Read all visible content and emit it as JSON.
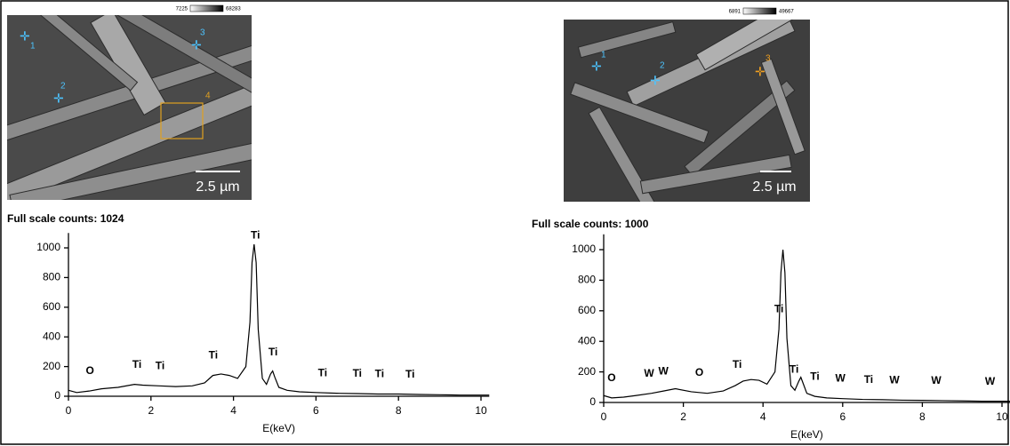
{
  "chart_data": [
    {
      "type": "line",
      "title": "Full scale counts: 1024",
      "x_label": "E(keV)",
      "color": "#000000",
      "xlim": [
        0,
        10.2
      ],
      "ylim": [
        0,
        1100
      ],
      "xticks": [
        0,
        2,
        4,
        6,
        8,
        10
      ],
      "yticks": [
        0,
        200,
        400,
        600,
        800,
        1000
      ],
      "x": [
        0,
        0.2,
        0.5,
        0.8,
        1.2,
        1.6,
        1.8,
        2.2,
        2.6,
        3.0,
        3.3,
        3.5,
        3.7,
        3.9,
        4.1,
        4.3,
        4.4,
        4.45,
        4.5,
        4.55,
        4.6,
        4.7,
        4.8,
        4.9,
        4.95,
        5.0,
        5.1,
        5.3,
        5.6,
        6,
        6.5,
        7,
        7.5,
        8,
        8.5,
        9,
        9.5,
        10,
        10.2
      ],
      "values": [
        40,
        25,
        35,
        50,
        60,
        80,
        75,
        70,
        65,
        70,
        90,
        140,
        150,
        140,
        120,
        200,
        500,
        900,
        1024,
        900,
        450,
        120,
        80,
        150,
        170,
        130,
        60,
        40,
        30,
        25,
        20,
        18,
        15,
        15,
        12,
        10,
        8,
        8,
        8
      ],
      "peak_labels": [
        {
          "label": "O",
          "x": 0.52
        },
        {
          "label": "Ti",
          "x": 1.66
        },
        {
          "label": "Ti",
          "x": 2.22
        },
        {
          "label": "Ti",
          "x": 3.51
        },
        {
          "label": "Ti",
          "x": 4.53
        },
        {
          "label": "Ti",
          "x": 4.96
        },
        {
          "label": "Ti",
          "x": 6.16
        },
        {
          "label": "Ti",
          "x": 7.0
        },
        {
          "label": "Ti",
          "x": 7.54
        },
        {
          "label": "Ti",
          "x": 8.28
        }
      ]
    },
    {
      "type": "line",
      "title": "Full scale counts: 1000",
      "x_label": "E(keV)",
      "color": "#000000",
      "xlim": [
        0,
        10.2
      ],
      "ylim": [
        0,
        1100
      ],
      "xticks": [
        0,
        2,
        4,
        6,
        8,
        10
      ],
      "yticks": [
        0,
        200,
        400,
        600,
        800,
        1000
      ],
      "x": [
        0,
        0.2,
        0.5,
        0.8,
        1.2,
        1.5,
        1.8,
        2.2,
        2.6,
        3.0,
        3.3,
        3.5,
        3.7,
        3.9,
        4.1,
        4.3,
        4.4,
        4.45,
        4.5,
        4.55,
        4.6,
        4.7,
        4.8,
        4.9,
        4.95,
        5.0,
        5.1,
        5.3,
        5.6,
        6,
        6.5,
        7,
        7.5,
        8,
        8.5,
        9,
        9.5,
        10,
        10.2
      ],
      "values": [
        45,
        30,
        35,
        45,
        60,
        75,
        90,
        70,
        60,
        75,
        110,
        140,
        150,
        145,
        120,
        200,
        480,
        850,
        1000,
        850,
        420,
        110,
        80,
        140,
        165,
        130,
        60,
        40,
        30,
        25,
        20,
        18,
        15,
        14,
        12,
        10,
        8,
        8,
        8
      ],
      "peak_labels": [
        {
          "label": "O",
          "x": 0.2
        },
        {
          "label": "W",
          "x": 1.14
        },
        {
          "label": "W",
          "x": 1.5
        },
        {
          "label": "O",
          "x": 2.4
        },
        {
          "label": "Ti",
          "x": 3.35
        },
        {
          "label": "Ti",
          "x": 4.4
        },
        {
          "label": "Ti",
          "x": 4.78
        },
        {
          "label": "Ti",
          "x": 5.3
        },
        {
          "label": "W",
          "x": 5.94
        },
        {
          "label": "Ti",
          "x": 6.65
        },
        {
          "label": "W",
          "x": 7.3
        },
        {
          "label": "W",
          "x": 8.35
        },
        {
          "label": "W",
          "x": 9.7
        }
      ]
    }
  ],
  "images": [
    {
      "colorbar_min": "7225",
      "colorbar_max": "68283",
      "scale_bar": "2.5 µm",
      "markers": [
        "1",
        "2",
        "3",
        "4"
      ]
    },
    {
      "colorbar_min": "6891",
      "colorbar_max": "49667",
      "scale_bar": "2.5 µm",
      "markers": [
        "1",
        "2",
        "3"
      ]
    }
  ]
}
